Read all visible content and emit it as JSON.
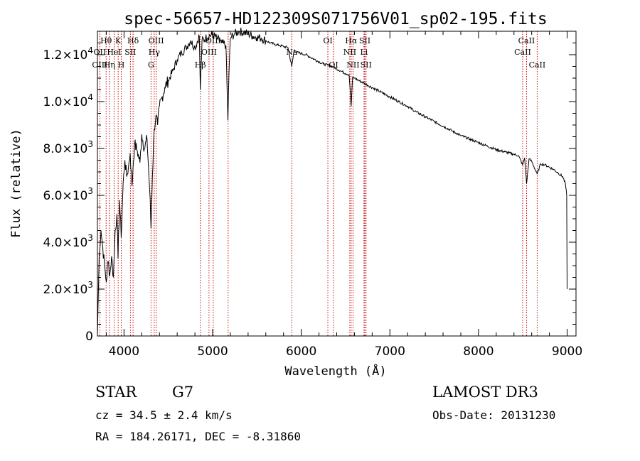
{
  "chart_data": {
    "type": "line",
    "title": "spec-56657-HD122309S071756V01_sp02-195.fits",
    "xlabel": "Wavelength (Å)",
    "ylabel": "Flux (relative)",
    "xlim": [
      3700,
      9100
    ],
    "ylim": [
      0,
      13000
    ],
    "x_ticks": [
      4000,
      5000,
      6000,
      7000,
      8000,
      9000
    ],
    "x_tick_labels": [
      "4000",
      "5000",
      "6000",
      "7000",
      "8000",
      "9000"
    ],
    "y_ticks": [
      0,
      2000,
      4000,
      6000,
      8000,
      10000,
      12000
    ],
    "y_tick_labels": [
      {
        "mant": "0",
        "exp": ""
      },
      {
        "mant": "2.0×10",
        "exp": "3"
      },
      {
        "mant": "4.0×10",
        "exp": "3"
      },
      {
        "mant": "6.0×10",
        "exp": "3"
      },
      {
        "mant": "8.0×10",
        "exp": "3"
      },
      {
        "mant": "1.0×10",
        "exp": "4"
      },
      {
        "mant": "1.2×10",
        "exp": "4"
      }
    ],
    "series": [
      {
        "name": "flux",
        "x": [
          3700,
          3720,
          3740,
          3760,
          3780,
          3800,
          3820,
          3840,
          3860,
          3880,
          3900,
          3920,
          3933,
          3950,
          3968,
          3990,
          4010,
          4030,
          4050,
          4070,
          4090,
          4102,
          4120,
          4150,
          4180,
          4200,
          4230,
          4260,
          4290,
          4305,
          4320,
          4340,
          4360,
          4380,
          4400,
          4430,
          4460,
          4500,
          4550,
          4600,
          4650,
          4700,
          4750,
          4800,
          4850,
          4861,
          4880,
          4920,
          4960,
          5000,
          5050,
          5100,
          5150,
          5172,
          5183,
          5200,
          5250,
          5300,
          5350,
          5400,
          5450,
          5500,
          5550,
          5600,
          5650,
          5700,
          5750,
          5800,
          5850,
          5893,
          5920,
          5950,
          6000,
          6050,
          6100,
          6150,
          6200,
          6250,
          6300,
          6350,
          6400,
          6450,
          6500,
          6540,
          6563,
          6580,
          6600,
          6650,
          6700,
          6750,
          6800,
          6900,
          7000,
          7100,
          7200,
          7300,
          7400,
          7500,
          7600,
          7700,
          7800,
          7900,
          8000,
          8100,
          8200,
          8300,
          8400,
          8450,
          8498,
          8520,
          8542,
          8570,
          8600,
          8662,
          8700,
          8750,
          8800,
          8850,
          8900,
          8950,
          8980,
          8995,
          9000
        ],
        "y": [
          0,
          3500,
          4500,
          3800,
          3000,
          2300,
          3200,
          2600,
          3400,
          2500,
          4500,
          5200,
          3300,
          5800,
          4200,
          6500,
          7500,
          6800,
          7200,
          7800,
          6400,
          7200,
          8200,
          7900,
          7400,
          8600,
          8000,
          8400,
          6200,
          4600,
          6800,
          8800,
          9400,
          9000,
          9800,
          10200,
          10600,
          10900,
          11300,
          11800,
          12100,
          12300,
          12600,
          12300,
          12800,
          10500,
          12600,
          12700,
          12800,
          12850,
          12700,
          12500,
          12400,
          9200,
          11000,
          12700,
          12900,
          13000,
          12950,
          12900,
          12800,
          12750,
          12700,
          12600,
          12500,
          12450,
          12400,
          12350,
          12300,
          11500,
          12200,
          12100,
          12050,
          12000,
          11900,
          11800,
          11700,
          11600,
          11550,
          11500,
          11400,
          11300,
          11200,
          11150,
          9800,
          11050,
          11000,
          10900,
          10800,
          10700,
          10600,
          10400,
          10200,
          10000,
          9800,
          9550,
          9350,
          9150,
          8950,
          8750,
          8550,
          8400,
          8250,
          8100,
          7950,
          7850,
          7750,
          7700,
          7300,
          7600,
          6500,
          7550,
          7450,
          6900,
          7350,
          7300,
          7200,
          7100,
          6950,
          6800,
          6500,
          6000,
          2000
        ]
      }
    ],
    "line_labels": [
      {
        "text": "Hθ",
        "wavelength": 3798,
        "row": 1
      },
      {
        "text": "OII",
        "wavelength": 3727,
        "row": 2
      },
      {
        "text": "OIII",
        "wavelength": 3727,
        "row": 3
      },
      {
        "text": "K",
        "wavelength": 3934,
        "row": 1
      },
      {
        "text": "HeI",
        "wavelength": 3889,
        "row": 2
      },
      {
        "text": "Hη",
        "wavelength": 3835,
        "row": 3
      },
      {
        "text": "Hδ",
        "wavelength": 4102,
        "row": 1
      },
      {
        "text": "SII",
        "wavelength": 4072,
        "row": 2
      },
      {
        "text": "H",
        "wavelength": 3969,
        "row": 3
      },
      {
        "text": "OIII",
        "wavelength": 4363,
        "row": 1
      },
      {
        "text": "Hγ",
        "wavelength": 4341,
        "row": 2
      },
      {
        "text": "G",
        "wavelength": 4305,
        "row": 3
      },
      {
        "text": "OIII",
        "wavelength": 5007,
        "row": 1
      },
      {
        "text": "OIII",
        "wavelength": 4959,
        "row": 2
      },
      {
        "text": "Hβ",
        "wavelength": 4861,
        "row": 3
      },
      {
        "text": "Na",
        "wavelength": 5893,
        "row": 2
      },
      {
        "text": "OI",
        "wavelength": 6300,
        "row": 1
      },
      {
        "text": "OI",
        "wavelength": 6364,
        "row": 3
      },
      {
        "text": "Hα",
        "wavelength": 6563,
        "row": 1
      },
      {
        "text": "SII",
        "wavelength": 6717,
        "row": 1
      },
      {
        "text": "NII",
        "wavelength": 6548,
        "row": 2
      },
      {
        "text": "Li",
        "wavelength": 6708,
        "row": 2
      },
      {
        "text": "NII",
        "wavelength": 6584,
        "row": 3
      },
      {
        "text": "SII",
        "wavelength": 6731,
        "row": 3
      },
      {
        "text": "CaII",
        "wavelength": 8542,
        "row": 1
      },
      {
        "text": "CaII",
        "wavelength": 8498,
        "row": 2
      },
      {
        "text": "CaII",
        "wavelength": 8662,
        "row": 3
      }
    ],
    "marker_wavelengths": [
      3727,
      3798,
      3835,
      3889,
      3934,
      3969,
      4072,
      4102,
      4305,
      4341,
      4363,
      4861,
      4959,
      5007,
      5175,
      5893,
      6300,
      6364,
      6548,
      6563,
      6584,
      6708,
      6717,
      6731,
      8498,
      8542,
      8662
    ],
    "colors": {
      "marker_line": "#cc0000",
      "spectrum": "#000000"
    }
  },
  "info": {
    "object_class": "STAR",
    "subclass": "G7",
    "survey": "LAMOST DR3",
    "cz": "cz = 34.5 ± 2.4 km/s",
    "obs_date": "Obs-Date: 20131230",
    "coords": "RA = 184.26171, DEC =  -8.31860"
  }
}
